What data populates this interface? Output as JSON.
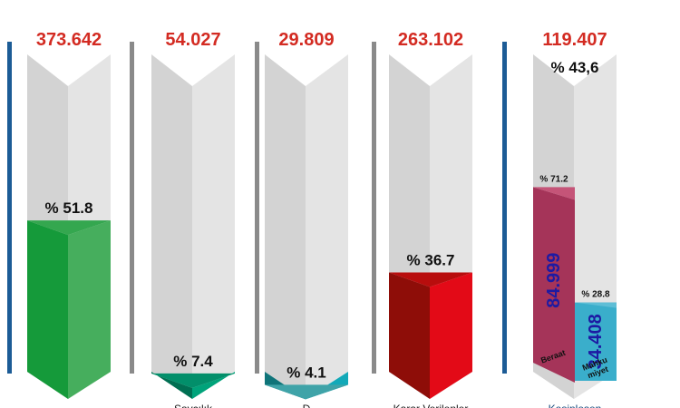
{
  "chart_data": {
    "type": "bar",
    "columns": [
      {
        "total": "373.642",
        "percent": 51.8,
        "percent_label": "% 51.8",
        "label": "",
        "colors": {
          "front": "#159a3a",
          "side": "#46ae5d",
          "top": "#34a74f"
        }
      },
      {
        "total": "54.027",
        "percent": 7.4,
        "percent_label": "% 7.4",
        "label": "Savcılık",
        "colors": {
          "front": "#006f52",
          "side": "#00a37a",
          "top": "#028f6a"
        }
      },
      {
        "total": "29.809",
        "percent": 4.1,
        "percent_label": "% 4.1",
        "label": "D",
        "colors": {
          "front": "#0f7479",
          "side": "#12a9b8",
          "top": "#3fa3a8"
        }
      },
      {
        "total": "263.102",
        "percent": 36.7,
        "percent_label": "% 36.7",
        "label": "Karar Verilenler",
        "colors": {
          "front": "#8e0d08",
          "side": "#e30a17",
          "top": "#b80d0d"
        }
      },
      {
        "total": "119.407",
        "percent": 43.6,
        "percent_label": "% 43,6",
        "label": "Kesinleşen",
        "colors": {
          "front": "#ccc9c9",
          "side": "#e1e1e1",
          "top": "#d8d8d8"
        },
        "sub_bars": [
          {
            "name": "Beraat",
            "value": "84.999",
            "percent": 71.2,
            "percent_label": "% 71.2",
            "color": "#a53459",
            "cap": "#c55478"
          },
          {
            "name": "Mahkumiyet",
            "name_lines": [
              "Mahku",
              "miyet"
            ],
            "value": "34.408",
            "percent": 28.8,
            "percent_label": "% 28.8",
            "color": "#3aaecb",
            "cap": "#5fbed6"
          }
        ]
      }
    ],
    "dividers": [
      {
        "color": "#1c5c96"
      },
      {
        "color": "#8a8a8a"
      },
      {
        "color": "#8a8a8a"
      },
      {
        "color": "#8a8a8a"
      },
      {
        "color": "#1c5c96"
      }
    ],
    "ylim": [
      0,
      100
    ]
  }
}
